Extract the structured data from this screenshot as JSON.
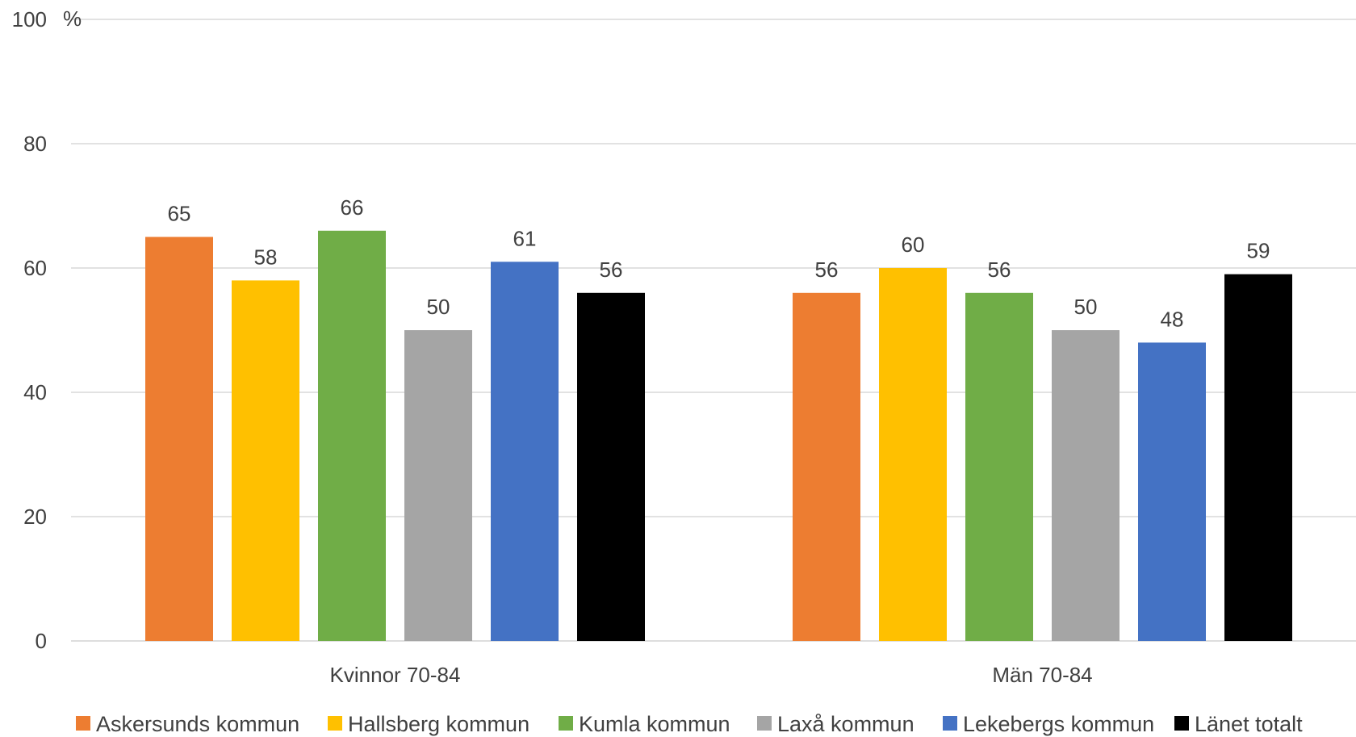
{
  "chart_data": {
    "type": "bar",
    "unit_label": "%",
    "categories": [
      "Kvinnor 70-84",
      "Män 70-84"
    ],
    "ylim": [
      0,
      100
    ],
    "yticks": [
      "0",
      "20",
      "40",
      "60",
      "80",
      "100"
    ],
    "grid": true,
    "legend_position": "bottom",
    "series": [
      {
        "name": "Askersunds kommun",
        "color": "#ED7D31",
        "values": [
          65,
          56
        ]
      },
      {
        "name": "Hallsberg kommun",
        "color": "#FFC000",
        "values": [
          58,
          60
        ]
      },
      {
        "name": "Kumla kommun",
        "color": "#70AD47",
        "values": [
          66,
          56
        ]
      },
      {
        "name": "Laxå kommun",
        "color": "#A5A5A5",
        "values": [
          50,
          50
        ]
      },
      {
        "name": "Lekebergs kommun",
        "color": "#4472C4",
        "values": [
          61,
          48
        ]
      },
      {
        "name": "Länet totalt",
        "color": "#000000",
        "values": [
          56,
          59
        ]
      }
    ]
  }
}
